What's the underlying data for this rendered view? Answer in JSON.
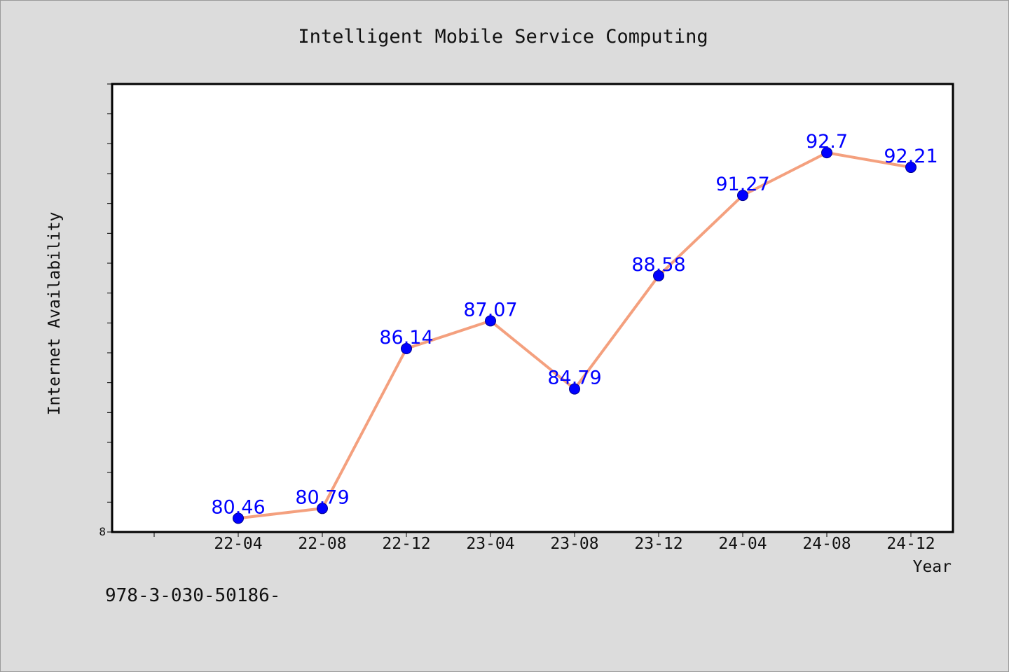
{
  "chart_data": {
    "type": "line",
    "title": "Intelligent Mobile Service Computing",
    "xlabel": "Year",
    "ylabel": "Internet Availability",
    "categories": [
      "22-04",
      "22-08",
      "22-12",
      "23-04",
      "23-08",
      "23-12",
      "24-04",
      "24-08",
      "24-12"
    ],
    "series": [
      {
        "values": [
          80.46,
          80.79,
          86.14,
          87.07,
          84.79,
          88.58,
          91.27,
          92.7,
          92.21
        ]
      }
    ],
    "ylim": [
      80.0,
      95.0
    ],
    "ytick_labels": [
      "8"
    ],
    "grid": false,
    "line_color": "#f4a07e",
    "marker_color": "#0000ff",
    "label_color": "#0000ff"
  },
  "footer_note": "978-3-030-50186-"
}
